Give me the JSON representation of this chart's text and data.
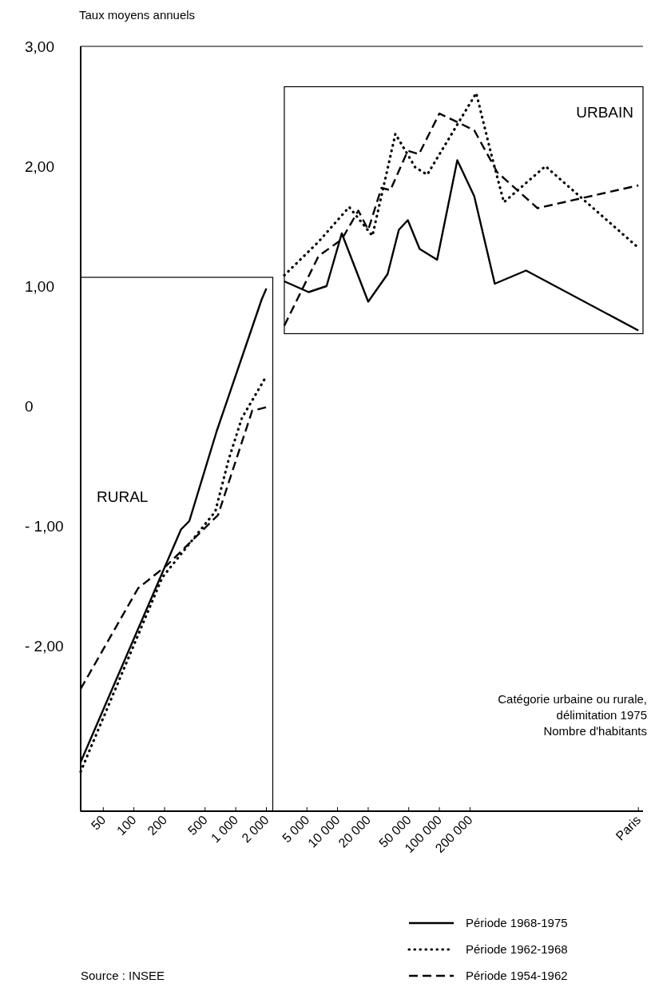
{
  "chart_data": {
    "type": "line",
    "ylabel": "Taux moyens annuels",
    "xlabel": "Catégorie urbaine ou rurale,\ndélimitation 1975\nNombre d'habitants",
    "annotations": [
      "RURAL",
      "URBAIN",
      "Source : INSEE"
    ],
    "log": "x",
    "xlim": [
      30,
      10000000
    ],
    "ylim": [
      -3.38,
      3
    ],
    "xticks": [
      50,
      100,
      200,
      500,
      {
        "value": 1000,
        "label": "1 000"
      },
      {
        "value": 2000,
        "label": "2 000"
      },
      {
        "value": 5000,
        "label": "5 000"
      },
      {
        "value": 10000,
        "label": "10 000"
      },
      {
        "value": 20000,
        "label": "20 000"
      },
      {
        "value": 50000,
        "label": "50 000"
      },
      {
        "value": 100000,
        "label": "100 000"
      },
      {
        "value": 200000,
        "label": "200 000"
      },
      {
        "value": 9000000,
        "label": "Paris"
      }
    ],
    "yticks": [
      {
        "value": 3,
        "label": "3,00"
      },
      {
        "value": 2,
        "label": "2,00"
      },
      {
        "value": 1,
        "label": "1,00"
      },
      0,
      {
        "value": -1,
        "label": "- 1,00"
      },
      {
        "value": -2,
        "label": "- 2,00"
      }
    ],
    "grid": false,
    "legend": "bottom right",
    "series": [
      {
        "name": "Période 1968-1975",
        "color": "#000000",
        "line_style": "solid",
        "x": [
          30,
          290,
          350,
          650,
          1800,
          2000
        ],
        "values": [
          -2.97,
          -1.03,
          -0.96,
          -0.21,
          0.89,
          0.98
        ]
      },
      {
        "name": "Période 1962-1968",
        "color": "#000000",
        "line_style": "dotted",
        "x": [
          30,
          190,
          630,
          850,
          1150,
          2000
        ],
        "values": [
          -3.05,
          -1.43,
          -0.88,
          -0.45,
          -0.1,
          0.25
        ]
      },
      {
        "name": "Période 1954-1962",
        "color": "#000000",
        "line_style": "dashed",
        "x": [
          30,
          110,
          210,
          670,
          1450,
          2000
        ],
        "values": [
          -2.36,
          -1.52,
          -1.33,
          -0.91,
          -0.04,
          -0.01
        ]
      },
      {
        "color": "#000000",
        "line_style": "solid",
        "x": [
          3000,
          5200,
          7800,
          11000,
          20000,
          31000,
          40000,
          49000,
          64000,
          95000,
          150000,
          220000,
          350000,
          710000,
          9000000
        ],
        "values": [
          1.04,
          0.95,
          1,
          1.44,
          0.87,
          1.1,
          1.47,
          1.55,
          1.31,
          1.22,
          2.05,
          1.75,
          1.02,
          1.13,
          0.63
        ]
      },
      {
        "color": "#000000",
        "line_style": "dotted",
        "x": [
          3000,
          6500,
          13000,
          22000,
          29000,
          37000,
          58000,
          76000,
          230000,
          330000,
          430000,
          1100000,
          9000000
        ],
        "values": [
          1.09,
          1.37,
          1.66,
          1.42,
          1.87,
          2.27,
          1.99,
          1.93,
          2.61,
          2.07,
          1.7,
          2,
          1.32
        ]
      },
      {
        "color": "#000000",
        "line_style": "dashed",
        "x": [
          3000,
          6500,
          11000,
          16000,
          20000,
          27000,
          33000,
          49000,
          63000,
          100000,
          220000,
          370000,
          920000,
          9000000
        ],
        "values": [
          0.67,
          1.25,
          1.39,
          1.63,
          1.47,
          1.82,
          1.8,
          2.13,
          2.1,
          2.44,
          2.3,
          1.95,
          1.65,
          1.84
        ]
      }
    ]
  }
}
